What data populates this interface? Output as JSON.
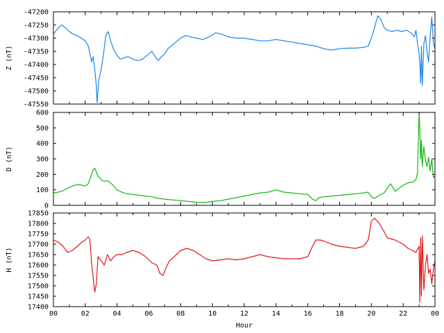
{
  "chart_data": [
    {
      "type": "line",
      "ylabel": "Z (nT)",
      "xlim": [
        0,
        24
      ],
      "ylim": [
        -47550,
        -47200
      ],
      "yticks": [
        -47550,
        -47500,
        -47450,
        -47400,
        -47350,
        -47300,
        -47250,
        -47200
      ],
      "color": "#1a85e8",
      "x": [
        0,
        0.25,
        0.5,
        0.75,
        1,
        1.25,
        1.5,
        1.75,
        2,
        2.2,
        2.4,
        2.5,
        2.6,
        2.7,
        2.75,
        2.85,
        3,
        3.15,
        3.3,
        3.45,
        3.6,
        3.8,
        4,
        4.2,
        4.4,
        4.7,
        5,
        5.3,
        5.6,
        5.9,
        6.2,
        6.45,
        6.6,
        6.8,
        7,
        7.2,
        7.5,
        7.8,
        8,
        8.3,
        8.6,
        9,
        9.4,
        9.8,
        10.2,
        10.6,
        11,
        11.5,
        12,
        12.5,
        13,
        13.5,
        14,
        14.5,
        15,
        15.5,
        16,
        16.5,
        17,
        17.5,
        18,
        18.5,
        19,
        19.5,
        19.8,
        20,
        20.2,
        20.4,
        20.6,
        20.8,
        21,
        21.3,
        21.6,
        21.9,
        22.2,
        22.5,
        22.7,
        22.8,
        22.9,
        23,
        23.05,
        23.1,
        23.15,
        23.2,
        23.3,
        23.4,
        23.5,
        23.6,
        23.7,
        23.8,
        23.9,
        24
      ],
      "values": [
        -47285,
        -47265,
        -47250,
        -47260,
        -47275,
        -47285,
        -47290,
        -47300,
        -47310,
        -47330,
        -47390,
        -47370,
        -47420,
        -47480,
        -47545,
        -47460,
        -47420,
        -47360,
        -47290,
        -47275,
        -47310,
        -47345,
        -47365,
        -47380,
        -47375,
        -47370,
        -47380,
        -47385,
        -47380,
        -47365,
        -47350,
        -47375,
        -47385,
        -47370,
        -47360,
        -47340,
        -47325,
        -47310,
        -47300,
        -47290,
        -47295,
        -47300,
        -47305,
        -47295,
        -47280,
        -47285,
        -47295,
        -47300,
        -47300,
        -47305,
        -47310,
        -47310,
        -47305,
        -47310,
        -47315,
        -47320,
        -47325,
        -47330,
        -47340,
        -47345,
        -47340,
        -47338,
        -47338,
        -47335,
        -47330,
        -47300,
        -47260,
        -47215,
        -47230,
        -47260,
        -47270,
        -47275,
        -47270,
        -47275,
        -47270,
        -47280,
        -47295,
        -47270,
        -47320,
        -47360,
        -47400,
        -47470,
        -47330,
        -47480,
        -47320,
        -47290,
        -47350,
        -47390,
        -47290,
        -47220,
        -47320,
        -47340
      ]
    },
    {
      "type": "line",
      "ylabel": "D (nT)",
      "xlim": [
        0,
        24
      ],
      "ylim": [
        0,
        600
      ],
      "yticks": [
        0,
        100,
        200,
        300,
        400,
        500,
        600
      ],
      "color": "#11b611",
      "x": [
        0,
        0.3,
        0.6,
        0.9,
        1.2,
        1.5,
        1.8,
        2,
        2.2,
        2.4,
        2.5,
        2.6,
        2.7,
        2.8,
        3,
        3.2,
        3.4,
        3.6,
        3.8,
        4,
        4.3,
        4.6,
        5,
        5.4,
        5.8,
        6.2,
        6.6,
        7,
        7.5,
        8,
        8.5,
        9,
        9.5,
        10,
        10.5,
        11,
        11.5,
        12,
        12.5,
        13,
        13.5,
        14,
        14.5,
        15,
        15.5,
        16,
        16.3,
        16.5,
        16.7,
        17,
        17.5,
        18,
        18.5,
        19,
        19.5,
        19.8,
        20,
        20.2,
        20.5,
        20.8,
        21,
        21.2,
        21.5,
        21.8,
        22,
        22.3,
        22.6,
        22.8,
        22.9,
        23,
        23.05,
        23.1,
        23.15,
        23.2,
        23.3,
        23.4,
        23.5,
        23.6,
        23.7,
        23.8,
        23.9,
        24
      ],
      "values": [
        80,
        85,
        95,
        110,
        125,
        135,
        130,
        125,
        140,
        200,
        230,
        240,
        215,
        190,
        165,
        155,
        160,
        145,
        125,
        100,
        85,
        75,
        70,
        65,
        60,
        55,
        45,
        40,
        35,
        30,
        25,
        20,
        18,
        25,
        30,
        40,
        50,
        60,
        70,
        80,
        85,
        100,
        85,
        80,
        75,
        70,
        40,
        30,
        50,
        55,
        60,
        65,
        70,
        75,
        80,
        85,
        55,
        45,
        65,
        80,
        110,
        140,
        90,
        115,
        130,
        145,
        150,
        165,
        210,
        600,
        480,
        300,
        420,
        250,
        380,
        290,
        250,
        310,
        220,
        300,
        180,
        190
      ]
    },
    {
      "type": "line",
      "ylabel": "H (nT)",
      "xlabel": "Hour",
      "xlim": [
        0,
        24
      ],
      "ylim": [
        17400,
        17850
      ],
      "yticks": [
        17400,
        17450,
        17500,
        17550,
        17600,
        17650,
        17700,
        17750,
        17800,
        17850
      ],
      "xticks": [
        "00",
        "02",
        "04",
        "06",
        "08",
        "10",
        "12",
        "14",
        "16",
        "18",
        "20",
        "22",
        "00"
      ],
      "color": "#e11414",
      "x": [
        0,
        0.3,
        0.6,
        0.9,
        1.2,
        1.5,
        1.8,
        2,
        2.2,
        2.3,
        2.4,
        2.5,
        2.6,
        2.7,
        2.8,
        3,
        3.2,
        3.4,
        3.6,
        3.8,
        4,
        4.3,
        4.6,
        5,
        5.4,
        5.8,
        6.2,
        6.5,
        6.7,
        6.9,
        7.1,
        7.3,
        7.6,
        8,
        8.4,
        8.8,
        9.2,
        9.6,
        10,
        10.5,
        11,
        11.5,
        12,
        12.5,
        13,
        13.5,
        14,
        14.5,
        15,
        15.5,
        16,
        16.3,
        16.5,
        16.8,
        17,
        17.5,
        18,
        18.5,
        19,
        19.5,
        19.8,
        20,
        20.2,
        20.5,
        20.8,
        21,
        21.5,
        22,
        22.3,
        22.6,
        22.8,
        23,
        23.05,
        23.1,
        23.15,
        23.2,
        23.3,
        23.4,
        23.5,
        23.6,
        23.7,
        23.8,
        23.9,
        24
      ],
      "values": [
        17720,
        17710,
        17690,
        17660,
        17670,
        17690,
        17710,
        17720,
        17735,
        17720,
        17610,
        17540,
        17470,
        17510,
        17640,
        17620,
        17600,
        17650,
        17620,
        17640,
        17650,
        17650,
        17660,
        17670,
        17660,
        17640,
        17610,
        17600,
        17560,
        17550,
        17590,
        17620,
        17640,
        17670,
        17680,
        17670,
        17650,
        17630,
        17620,
        17625,
        17630,
        17625,
        17630,
        17640,
        17650,
        17640,
        17635,
        17630,
        17630,
        17630,
        17640,
        17690,
        17720,
        17720,
        17715,
        17700,
        17690,
        17685,
        17680,
        17690,
        17720,
        17810,
        17825,
        17800,
        17760,
        17730,
        17720,
        17700,
        17680,
        17670,
        17660,
        17690,
        17420,
        17730,
        17450,
        17740,
        17480,
        17600,
        17650,
        17560,
        17580,
        17510,
        17580,
        17620
      ]
    }
  ]
}
